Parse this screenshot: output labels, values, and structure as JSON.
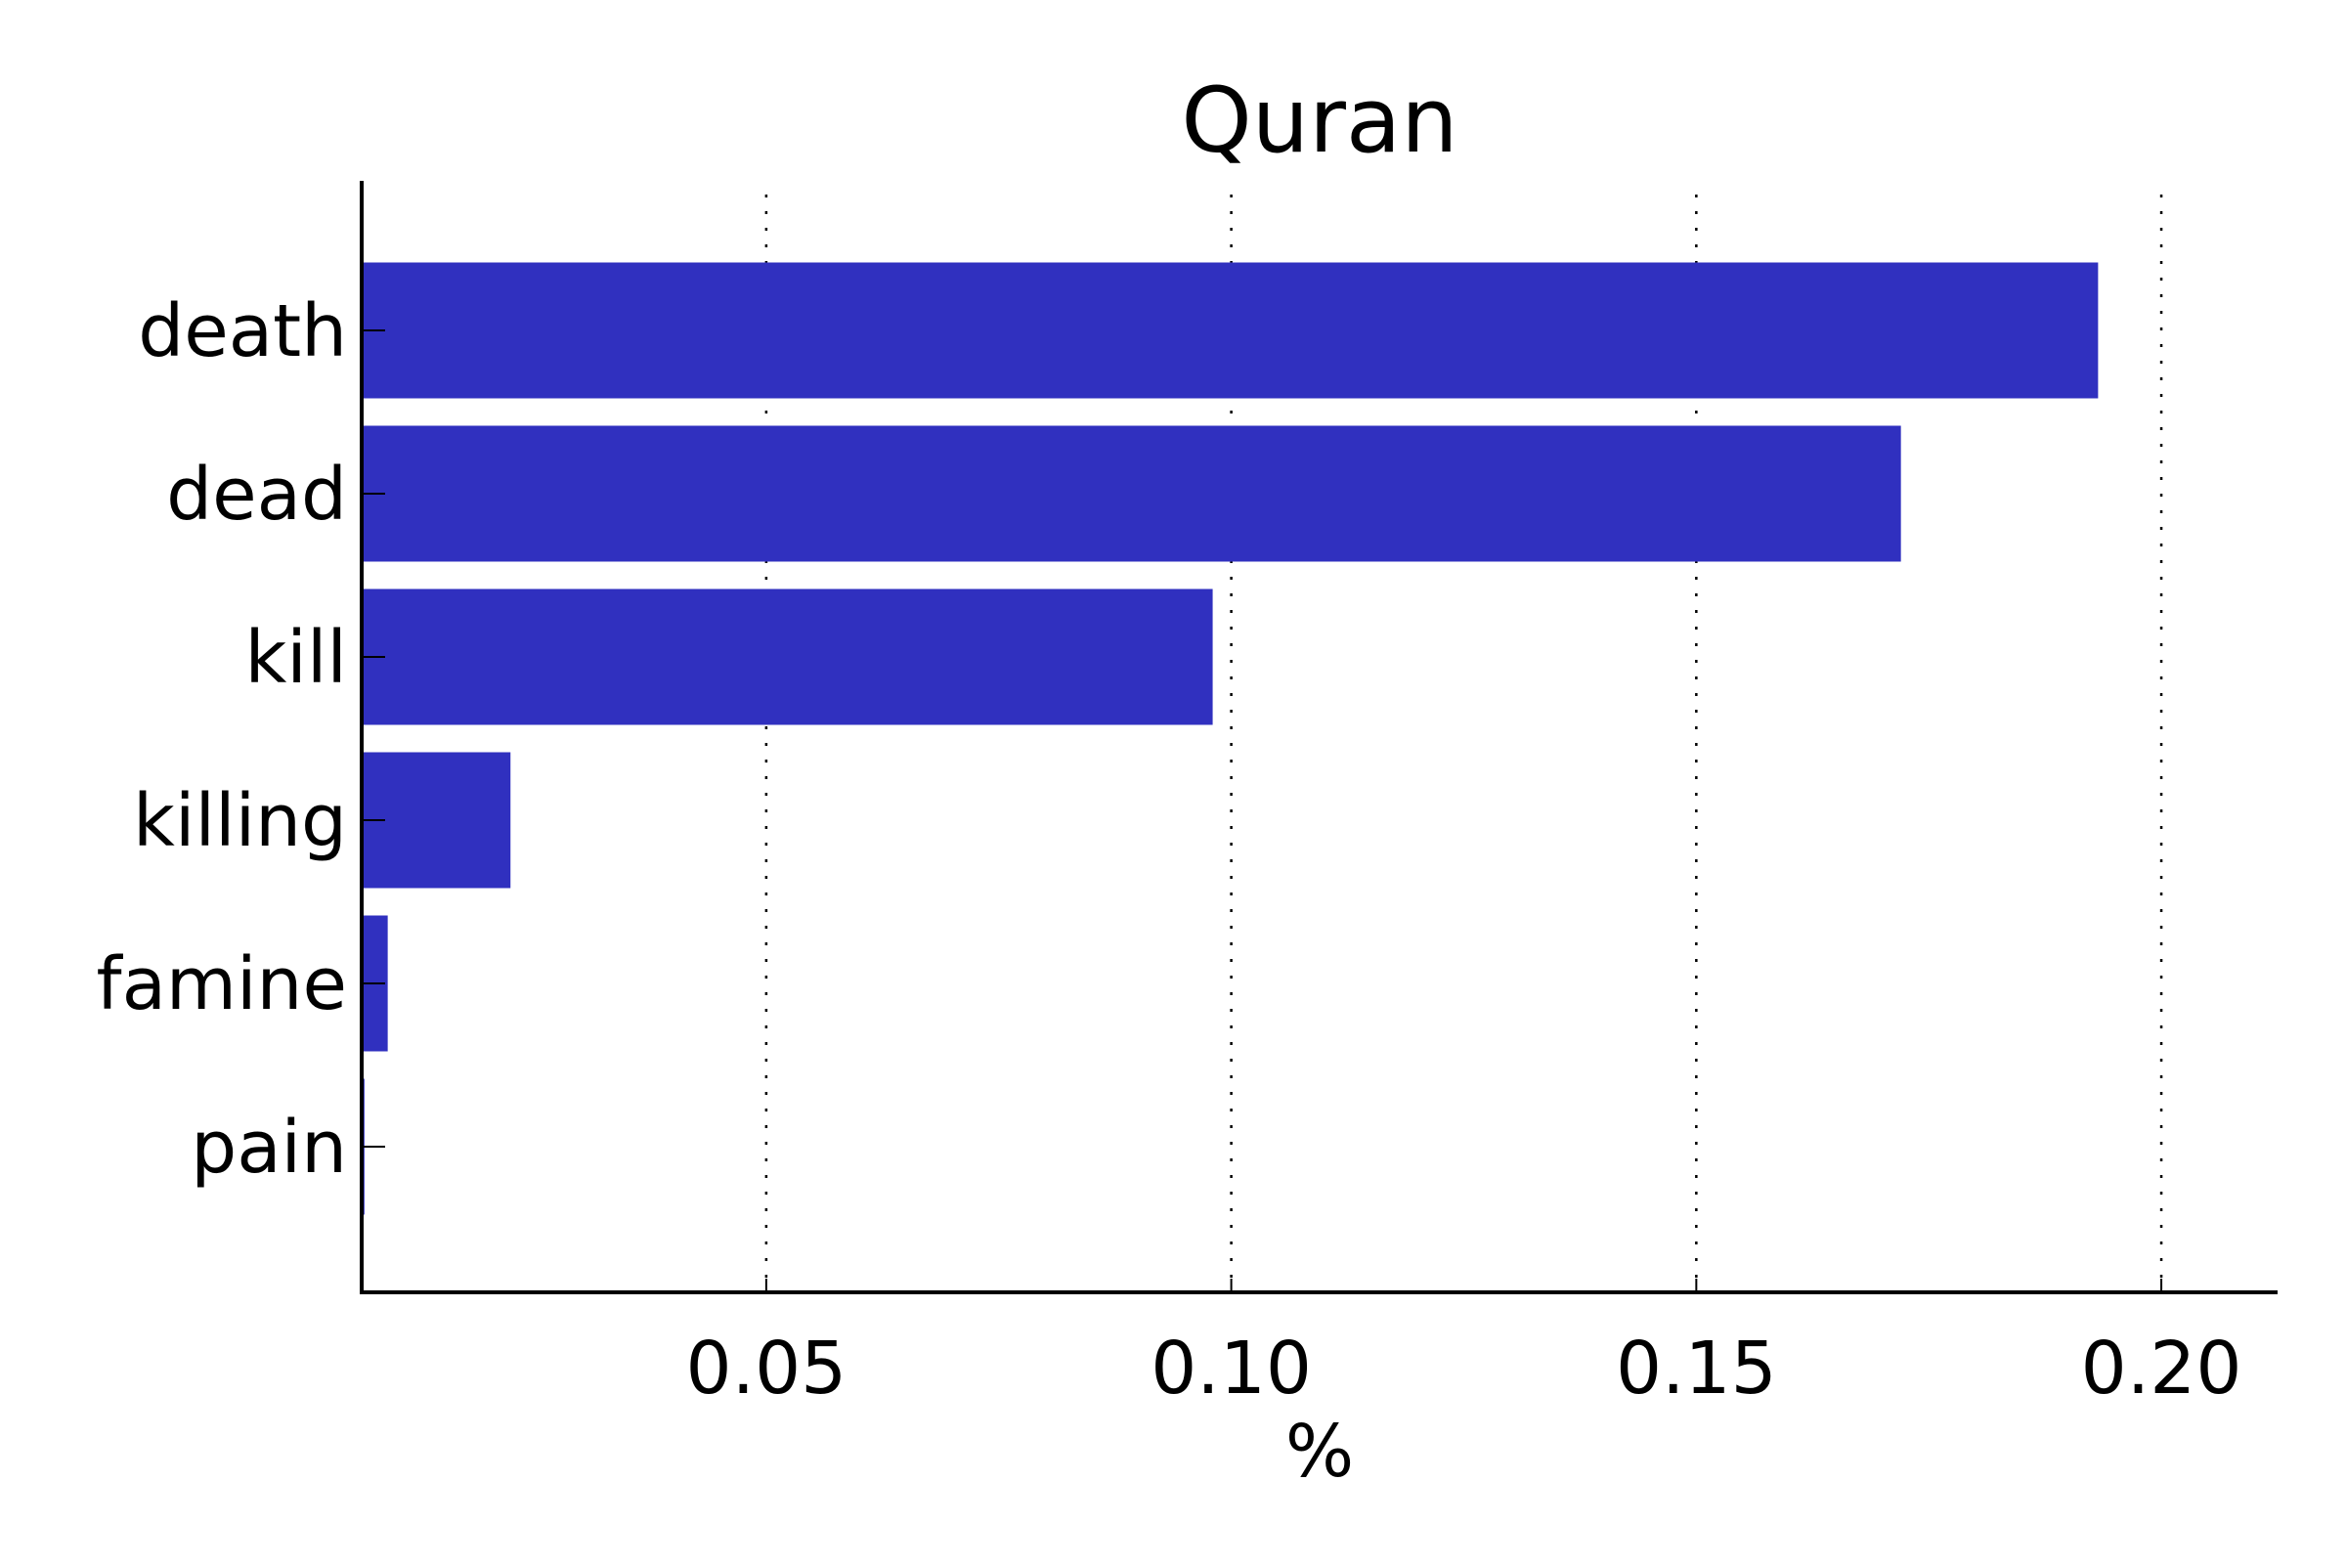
{
  "chart_data": {
    "type": "bar",
    "orientation": "horizontal",
    "title": "Quran",
    "xlabel": "%",
    "ylabel": "",
    "categories": [
      "death",
      "dead",
      "kill",
      "killing",
      "famine",
      "pain"
    ],
    "values": [
      0.1932,
      0.172,
      0.098,
      0.0225,
      0.0093,
      0.0068
    ],
    "xlim": [
      0.0065,
      0.2125
    ],
    "xticks": [
      0.05,
      0.1,
      0.15,
      0.2
    ],
    "xtick_labels": [
      "0.05",
      "0.10",
      "0.15",
      "0.20"
    ],
    "grid": "x-axis dotted",
    "bar_color": "#3030bf"
  }
}
